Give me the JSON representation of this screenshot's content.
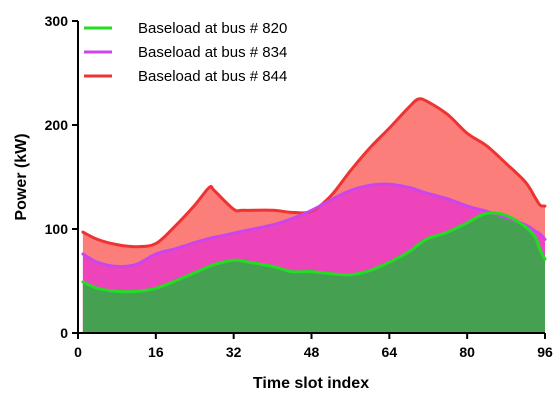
{
  "chart_data": {
    "type": "area",
    "title": "",
    "xlabel": "Time slot index",
    "ylabel": "Power (kW)",
    "xlim": [
      0,
      96
    ],
    "ylim": [
      0,
      300
    ],
    "xticks": [
      0,
      16,
      32,
      48,
      64,
      80,
      96
    ],
    "yticks": [
      0,
      100,
      200,
      300
    ],
    "grid": false,
    "legend_position": "top-left",
    "x": [
      1,
      4,
      8,
      12,
      16,
      20,
      24,
      27,
      28,
      32,
      34,
      40,
      44,
      48,
      52,
      56,
      60,
      64,
      68,
      70,
      72,
      76,
      80,
      84,
      88,
      92,
      94,
      95,
      96
    ],
    "series": [
      {
        "name": "Baseload at bus # 820",
        "line_color": "#22dd22",
        "fill_color": "#45a052",
        "values": [
          49,
          43,
          40,
          40,
          43,
          50,
          58,
          64,
          66,
          70,
          69,
          64,
          59,
          59,
          57,
          56,
          60,
          68,
          78,
          85,
          91,
          97,
          106,
          115,
          113,
          102,
          92,
          80,
          71
        ]
      },
      {
        "name": "Baseload at bus # 834",
        "line_color": "#cc44ee",
        "fill_color": "#ee44bb",
        "values": [
          76,
          68,
          64,
          66,
          76,
          81,
          87,
          91,
          92,
          96,
          98,
          104,
          110,
          118,
          128,
          137,
          142,
          143,
          140,
          137,
          134,
          129,
          122,
          117,
          111,
          104,
          98,
          95,
          90
        ]
      },
      {
        "name": "Baseload at bus # 844",
        "line_color": "#ee3333",
        "fill_color": "#fb7e7a",
        "values": [
          97,
          90,
          85,
          83,
          86,
          103,
          123,
          140,
          137,
          119,
          118,
          118,
          116,
          117,
          132,
          156,
          178,
          197,
          217,
          225,
          222,
          210,
          192,
          180,
          163,
          145,
          130,
          123,
          122
        ]
      }
    ]
  }
}
